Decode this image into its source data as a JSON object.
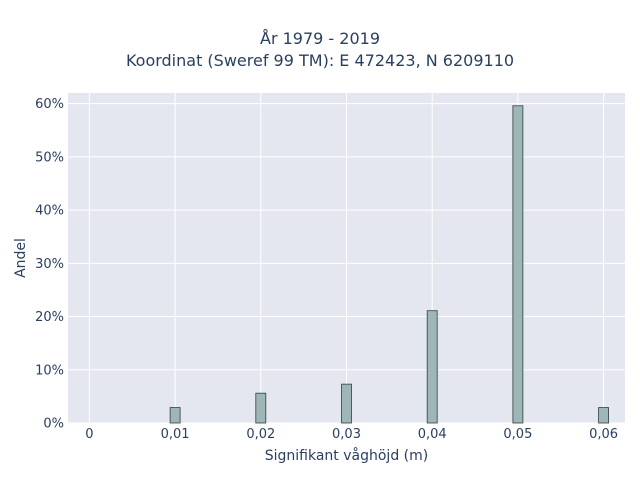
{
  "chart_data": {
    "type": "bar",
    "title_lines": [
      "År 1979 - 2019",
      "Koordinat (Sweref 99 TM): E 472423, N 6209110"
    ],
    "xlabel": "Signifikant våghöjd (m)",
    "ylabel": "Andel",
    "x": [
      0.01,
      0.02,
      0.03,
      0.04,
      0.05,
      0.06
    ],
    "values": [
      2.9,
      5.6,
      7.3,
      21.1,
      59.6,
      2.9
    ],
    "value_unit": "%",
    "xlim": [
      -0.0025,
      0.0625
    ],
    "ylim": [
      0,
      62
    ],
    "x_ticks": [
      0,
      0.01,
      0.02,
      0.03,
      0.04,
      0.05,
      0.06
    ],
    "x_tick_labels": [
      "0",
      "0,01",
      "0,02",
      "0,03",
      "0,04",
      "0,05",
      "0,06"
    ],
    "y_ticks": [
      0,
      10,
      20,
      30,
      40,
      50,
      60
    ],
    "y_tick_labels": [
      "0%",
      "10%",
      "20%",
      "30%",
      "40%",
      "50%",
      "60%"
    ],
    "grid": true,
    "colors": {
      "bar_fill": "#9fb6b7",
      "bar_stroke": "#2f3f3f",
      "plot_bg": "#e5e7f0",
      "grid": "#ffffff",
      "text": "#2a3f5f"
    }
  }
}
